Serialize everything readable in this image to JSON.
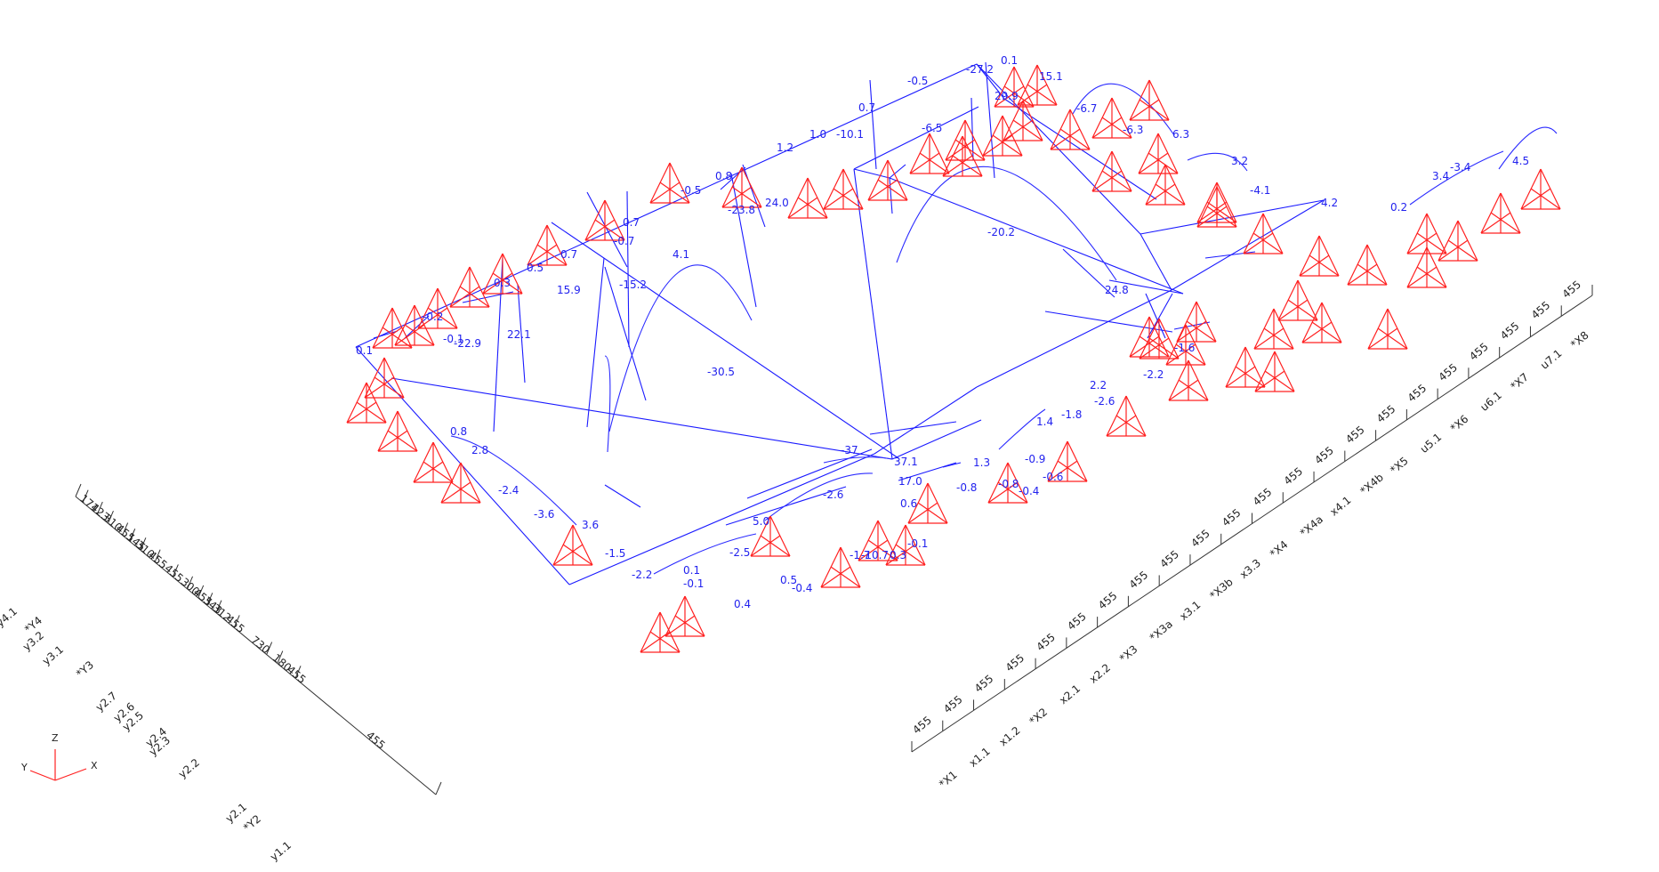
{
  "title": "",
  "beam_labels": [
    "0.1",
    "-0.2",
    "-0.1",
    "0.3",
    "0.5",
    "0.7",
    "-0.7",
    "0.7",
    "-0.5",
    "0.8",
    "1.2",
    "1.0",
    "0.7",
    "-0.5",
    "0.1",
    "15.1",
    "-6.7",
    "-6.3",
    "6.3",
    "3.2",
    "-4.1",
    "4.2",
    "0.2",
    "3.4",
    "-3.4",
    "4.5",
    "-22.9",
    "22.1",
    "15.9",
    "-15.2",
    "4.1",
    "24.0",
    "-23.8",
    "-10.1",
    "-6.5",
    "-27.2",
    "29.9",
    "-30.5",
    "-20.2",
    "24.8",
    "-1.6",
    "-2.2",
    "-2.6",
    "2.2",
    "1.4",
    "-1.8",
    "1.3",
    "-0.8",
    "37.1",
    "-37",
    "17.0",
    "0.6",
    "-1.7",
    "-10.7",
    "-2.6",
    "5.0",
    "-2.5",
    "0.1",
    "-0.1",
    "0.4",
    "-0.4",
    "0.5",
    "0.8",
    "2.8",
    "-2.4",
    "-3.6",
    "3.6",
    "-1.5",
    "-2.2",
    "0.3",
    "-0.1",
    "-0.8",
    "-0.6",
    "-0.9",
    "-0.4"
  ],
  "x_axis": {
    "dims": [
      "455",
      "455",
      "455",
      "455",
      "455",
      "455",
      "455",
      "455",
      "455",
      "455",
      "455",
      "455",
      "455",
      "455",
      "455",
      "455",
      "455",
      "455",
      "455",
      "455",
      "455",
      "455"
    ],
    "grids": [
      "*X1",
      "x1.1",
      "x1.2",
      "*X2",
      "x2.1",
      "x2.2",
      "*X3",
      "*X3a",
      "x3.1",
      "*X3b",
      "x3.3",
      "*X4",
      "*X4a",
      "x4.1",
      "*X4b",
      "*X5",
      "u5.1",
      "*X6",
      "u6.1",
      "*X7",
      "u7.1",
      "*X8"
    ]
  },
  "y_axis": {
    "dims": [
      "171",
      "423",
      "310",
      "455",
      "145",
      "310",
      "455",
      "455",
      "300",
      "455",
      "343",
      "312",
      "455",
      "730",
      "180",
      "455",
      "455"
    ],
    "grids": [
      "y4.1",
      "*Y4",
      "y3.2",
      "y3.1",
      "*Y3",
      "y2.7",
      "y2.6",
      "y2.5",
      "y2.4",
      "y2.3",
      "y2.2",
      "y2.1",
      "*Y2",
      "y1.1"
    ]
  },
  "triad": {
    "x": "X",
    "y": "Y",
    "z": "Z"
  }
}
